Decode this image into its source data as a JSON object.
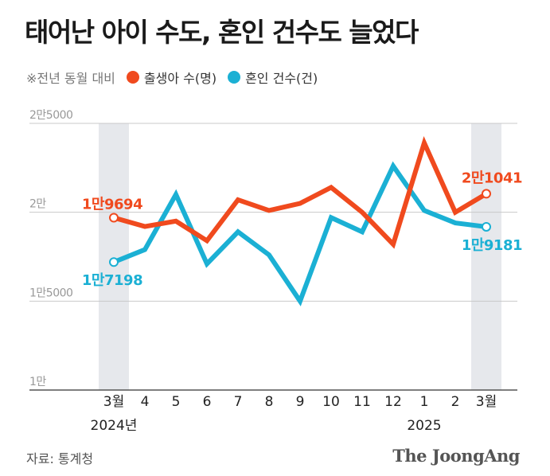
{
  "title": "태어난 아이 수도, 혼인 건수도 늘었다",
  "legend_note": "※전년 동월 대비",
  "source": "자료: 통계청",
  "brand": "The JoongAng",
  "chart_data": {
    "type": "line",
    "categories": [
      "3월",
      "4",
      "5",
      "6",
      "7",
      "8",
      "9",
      "10",
      "11",
      "12",
      "1",
      "2",
      "3월"
    ],
    "year_labels": [
      {
        "index": 0,
        "label": "2024년"
      },
      {
        "index": 10,
        "label": "2025"
      }
    ],
    "ylim": [
      10000,
      25000
    ],
    "y_ticks": [
      {
        "value": 25000,
        "label": "2만5000"
      },
      {
        "value": 20000,
        "label": "2만"
      },
      {
        "value": 15000,
        "label": "1만5000"
      },
      {
        "value": 10000,
        "label": "1만"
      }
    ],
    "highlight_categories": [
      0,
      12
    ],
    "series": [
      {
        "name": "출생아 수(명)",
        "color": "#f04a1e",
        "values": [
          19694,
          19200,
          19500,
          18400,
          20700,
          20100,
          20500,
          21400,
          20000,
          18200,
          23900,
          20000,
          21041
        ],
        "labels": [
          {
            "index": 0,
            "text": "1만9694"
          },
          {
            "index": 12,
            "text": "2만1041"
          }
        ]
      },
      {
        "name": "혼인 건수(건)",
        "color": "#1bb0d4",
        "values": [
          17198,
          17900,
          21000,
          17100,
          18900,
          17600,
          15000,
          19700,
          18900,
          22600,
          20100,
          19400,
          19181
        ],
        "labels": [
          {
            "index": 0,
            "text": "1만7198"
          },
          {
            "index": 12,
            "text": "1만9181"
          }
        ]
      }
    ]
  }
}
